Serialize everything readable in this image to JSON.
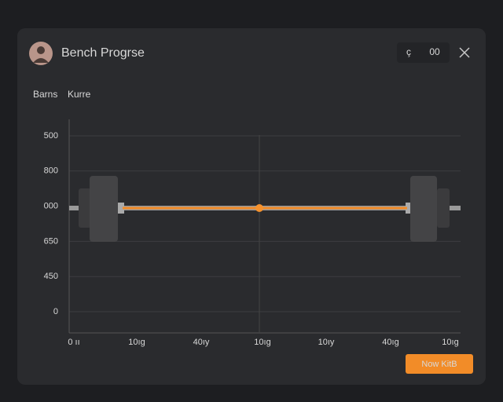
{
  "window": {
    "title": "Bench Progrse",
    "toolbar_button": "00"
  },
  "legend": [
    "Barns",
    "Kurre"
  ],
  "chart": {
    "y_labels": [
      "500",
      "800",
      "000",
      "650",
      "450",
      "0"
    ],
    "x_labels": [
      "0 ıı",
      "10ıg",
      "40ıy",
      "10ıg",
      "10ıy",
      "40ıg",
      "10ıg"
    ]
  },
  "action_button": "Now KitB"
}
